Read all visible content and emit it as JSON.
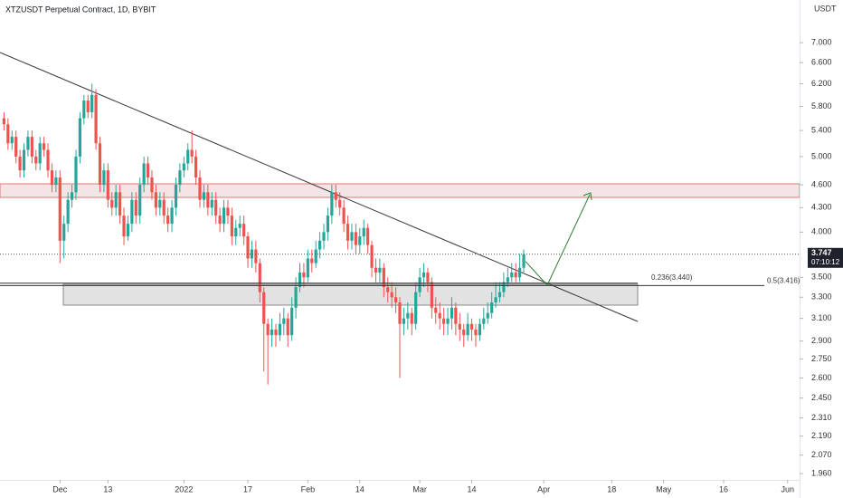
{
  "chart_data": {
    "type": "candlestick",
    "title": "XTZUSDT Perpetual Contract, 1D, BYBIT",
    "currency": "USDT",
    "countdown": "07:10:12",
    "log_scale": true,
    "up_color": "#26a69a",
    "down_color": "#ef5350",
    "xlim": [
      -15,
      185
    ],
    "xticks": [
      {
        "value": 0,
        "label": "Dec"
      },
      {
        "value": 12,
        "label": "13"
      },
      {
        "value": 31,
        "label": "2022"
      },
      {
        "value": 47,
        "label": "17"
      },
      {
        "value": 62,
        "label": "Feb"
      },
      {
        "value": 75,
        "label": "14"
      },
      {
        "value": 90,
        "label": "Mar"
      },
      {
        "value": 103,
        "label": "14"
      },
      {
        "value": 121,
        "label": "Apr"
      },
      {
        "value": 138,
        "label": "18"
      },
      {
        "value": 151,
        "label": "May"
      },
      {
        "value": 166,
        "label": "16"
      },
      {
        "value": 182,
        "label": "Jun"
      }
    ],
    "ylim": [
      1.924,
      7.94
    ],
    "yticks": [
      {
        "value": 7,
        "label": "7.000"
      },
      {
        "value": 6.6,
        "label": "6.600"
      },
      {
        "value": 6.2,
        "label": "6.200"
      },
      {
        "value": 5.8,
        "label": "5.800"
      },
      {
        "value": 5.4,
        "label": "5.400"
      },
      {
        "value": 5,
        "label": "5.000"
      },
      {
        "value": 4.6,
        "label": "4.600"
      },
      {
        "value": 4.3,
        "label": "4.300"
      },
      {
        "value": 4,
        "label": "4.000"
      },
      {
        "value": 3.5,
        "label": "3.500"
      },
      {
        "value": 3.3,
        "label": "3.300"
      },
      {
        "value": 3.1,
        "label": "3.100"
      },
      {
        "value": 2.9,
        "label": "2.900"
      },
      {
        "value": 2.75,
        "label": "2.750"
      },
      {
        "value": 2.6,
        "label": "2.600"
      },
      {
        "value": 2.45,
        "label": "2.450"
      },
      {
        "value": 2.31,
        "label": "2.310"
      },
      {
        "value": 2.19,
        "label": "2.190"
      },
      {
        "value": 2.07,
        "label": "2.070"
      },
      {
        "value": 1.96,
        "label": "1.960"
      }
    ],
    "fib_levels": [
      {
        "label": "0.236(3.440)",
        "value": 3.44
      },
      {
        "label": "0.5(3.416)",
        "value": 3.416
      }
    ],
    "x": [
      -14,
      -13,
      -12,
      -11,
      -10,
      -9,
      -8,
      -7,
      -6,
      -5,
      -4,
      -3,
      -2,
      -1,
      0,
      1,
      2,
      3,
      4,
      5,
      6,
      7,
      8,
      9,
      10,
      11,
      12,
      13,
      14,
      15,
      16,
      17,
      18,
      19,
      20,
      21,
      22,
      23,
      24,
      25,
      26,
      27,
      28,
      29,
      30,
      31,
      32,
      33,
      34,
      35,
      36,
      37,
      38,
      39,
      40,
      41,
      42,
      43,
      44,
      45,
      46,
      47,
      48,
      49,
      50,
      51,
      52,
      53,
      54,
      55,
      56,
      57,
      58,
      59,
      60,
      61,
      62,
      63,
      64,
      65,
      66,
      67,
      68,
      69,
      70,
      71,
      72,
      73,
      74,
      75,
      76,
      77,
      78,
      79,
      80,
      81,
      82,
      83,
      84,
      85,
      86,
      87,
      88,
      89,
      90,
      91,
      92,
      93,
      94,
      95,
      96,
      97,
      98,
      99,
      100,
      101,
      102,
      103,
      104,
      105,
      106,
      107,
      108,
      109,
      110,
      111,
      112,
      113,
      114,
      115,
      116
    ],
    "open": [
      5.6,
      5.5,
      5.2,
      5.3,
      5.0,
      4.8,
      5.1,
      5.3,
      5.0,
      4.9,
      5.2,
      5.1,
      4.8,
      4.6,
      4.7,
      3.9,
      4.1,
      4.4,
      4.5,
      5.0,
      5.6,
      5.9,
      5.7,
      6.0,
      5.2,
      4.6,
      4.8,
      4.4,
      4.3,
      4.5,
      4.2,
      3.95,
      4.1,
      4.4,
      4.2,
      4.6,
      4.9,
      4.7,
      4.5,
      4.3,
      4.4,
      4.2,
      4.1,
      4.3,
      4.6,
      4.8,
      4.9,
      5.1,
      5.0,
      4.7,
      4.4,
      4.5,
      4.3,
      4.4,
      4.2,
      4.1,
      4.3,
      4.2,
      3.95,
      4.05,
      4.1,
      3.95,
      3.7,
      3.8,
      3.65,
      3.35,
      3.05,
      2.95,
      3.0,
      2.95,
      3.05,
      3.1,
      2.95,
      3.2,
      3.4,
      3.55,
      3.5,
      3.7,
      3.65,
      3.8,
      3.9,
      4.0,
      4.2,
      4.5,
      4.4,
      4.3,
      4.1,
      3.9,
      4.0,
      3.85,
      3.95,
      4.05,
      3.85,
      3.6,
      3.55,
      3.6,
      3.4,
      3.35,
      3.3,
      3.25,
      3.05,
      3.1,
      3.15,
      3.05,
      3.35,
      3.5,
      3.55,
      3.45,
      3.2,
      3.15,
      3.1,
      3.05,
      3.1,
      3.2,
      3.05,
      3.0,
      2.95,
      3.05,
      3.0,
      2.95,
      3.05,
      3.1,
      3.15,
      3.25,
      3.3,
      3.35,
      3.45,
      3.5,
      3.55,
      3.5,
      3.6
    ],
    "high": [
      5.7,
      5.6,
      5.4,
      5.4,
      5.1,
      5.2,
      5.4,
      5.4,
      5.1,
      5.3,
      5.3,
      5.2,
      4.9,
      4.8,
      4.8,
      4.2,
      4.5,
      4.6,
      5.1,
      5.7,
      6.0,
      6.0,
      6.2,
      6.1,
      5.3,
      4.9,
      4.9,
      4.5,
      4.6,
      4.6,
      4.3,
      4.2,
      4.5,
      4.5,
      4.7,
      5.0,
      5.0,
      4.8,
      4.6,
      4.5,
      4.5,
      4.3,
      4.4,
      4.7,
      4.9,
      5.0,
      5.2,
      5.4,
      5.1,
      4.8,
      4.6,
      4.6,
      4.5,
      4.5,
      4.3,
      4.4,
      4.4,
      4.3,
      4.15,
      4.2,
      4.2,
      4.0,
      3.9,
      3.9,
      3.7,
      3.4,
      3.1,
      3.1,
      3.05,
      3.15,
      3.2,
      3.15,
      3.3,
      3.5,
      3.65,
      3.65,
      3.8,
      3.8,
      3.9,
      4.0,
      4.1,
      4.3,
      4.6,
      4.6,
      4.5,
      4.4,
      4.2,
      4.1,
      4.1,
      4.05,
      4.15,
      4.1,
      3.9,
      3.7,
      3.7,
      3.65,
      3.5,
      3.45,
      3.4,
      3.3,
      3.2,
      3.25,
      3.2,
      3.45,
      3.6,
      3.65,
      3.6,
      3.5,
      3.3,
      3.25,
      3.2,
      3.2,
      3.3,
      3.25,
      3.15,
      3.05,
      3.15,
      3.1,
      3.05,
      3.1,
      3.2,
      3.25,
      3.35,
      3.45,
      3.45,
      3.55,
      3.6,
      3.65,
      3.65,
      3.75,
      3.8
    ],
    "low": [
      5.4,
      5.1,
      5.1,
      4.9,
      4.7,
      4.7,
      5.0,
      4.9,
      4.8,
      4.8,
      5.0,
      4.7,
      4.5,
      4.5,
      3.65,
      3.7,
      4.0,
      4.3,
      4.4,
      4.9,
      5.5,
      5.6,
      5.6,
      5.1,
      4.5,
      4.5,
      4.3,
      4.2,
      4.2,
      4.1,
      3.85,
      3.9,
      4.0,
      4.1,
      4.1,
      4.5,
      4.6,
      4.4,
      4.2,
      4.2,
      4.1,
      4.0,
      4.0,
      4.2,
      4.5,
      4.7,
      4.8,
      4.9,
      4.6,
      4.3,
      4.3,
      4.2,
      4.2,
      4.1,
      4.0,
      4.0,
      4.1,
      3.85,
      3.85,
      3.95,
      3.85,
      3.6,
      3.6,
      3.55,
      3.25,
      2.65,
      2.55,
      2.85,
      2.85,
      2.9,
      2.95,
      2.85,
      2.9,
      3.1,
      3.35,
      3.4,
      3.45,
      3.55,
      3.6,
      3.7,
      3.8,
      3.9,
      4.1,
      4.3,
      4.2,
      4.0,
      3.8,
      3.8,
      3.75,
      3.75,
      3.85,
      3.75,
      3.5,
      3.45,
      3.45,
      3.3,
      3.25,
      3.2,
      3.15,
      2.6,
      2.95,
      3.0,
      2.95,
      3.0,
      3.3,
      3.4,
      3.35,
      3.1,
      3.05,
      3.0,
      2.95,
      2.95,
      3.0,
      2.95,
      2.9,
      2.85,
      2.9,
      2.9,
      2.85,
      2.9,
      3.0,
      3.05,
      3.1,
      3.2,
      3.25,
      3.3,
      3.4,
      3.45,
      3.45,
      3.45,
      3.55
    ],
    "close": [
      5.5,
      5.2,
      5.3,
      5.0,
      4.8,
      5.1,
      5.3,
      5.0,
      4.9,
      5.2,
      5.1,
      4.8,
      4.6,
      4.7,
      3.9,
      4.1,
      4.4,
      4.5,
      5.0,
      5.6,
      5.9,
      5.7,
      6.0,
      5.2,
      4.6,
      4.8,
      4.4,
      4.3,
      4.5,
      4.2,
      3.95,
      4.1,
      4.4,
      4.2,
      4.6,
      4.9,
      4.7,
      4.5,
      4.3,
      4.4,
      4.2,
      4.1,
      4.3,
      4.6,
      4.8,
      4.9,
      5.1,
      5.0,
      4.7,
      4.4,
      4.5,
      4.3,
      4.4,
      4.2,
      4.1,
      4.3,
      4.2,
      3.95,
      4.05,
      4.1,
      3.95,
      3.7,
      3.8,
      3.65,
      3.35,
      3.05,
      2.95,
      3.0,
      2.95,
      3.05,
      3.1,
      2.95,
      3.2,
      3.4,
      3.55,
      3.5,
      3.7,
      3.65,
      3.8,
      3.9,
      4.0,
      4.2,
      4.5,
      4.4,
      4.3,
      4.1,
      3.9,
      4.0,
      3.85,
      3.95,
      4.05,
      3.85,
      3.6,
      3.55,
      3.6,
      3.4,
      3.35,
      3.3,
      3.25,
      3.05,
      3.1,
      3.15,
      3.05,
      3.35,
      3.5,
      3.55,
      3.45,
      3.2,
      3.15,
      3.1,
      3.05,
      3.1,
      3.2,
      3.05,
      3.0,
      2.95,
      3.05,
      3.0,
      2.95,
      3.05,
      3.1,
      3.15,
      3.25,
      3.3,
      3.35,
      3.45,
      3.5,
      3.55,
      3.5,
      3.6,
      3.747
    ]
  }
}
